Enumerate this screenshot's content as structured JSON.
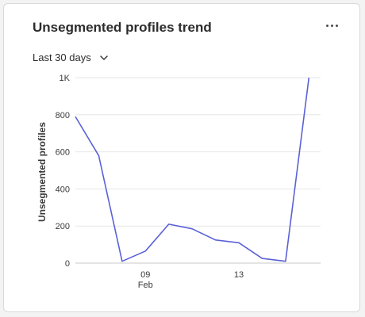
{
  "card": {
    "title": "Unsegmented profiles trend",
    "range_label": "Last 30 days"
  },
  "icons": {
    "more": "more-horizontal-icon",
    "dropdown": "chevron-down-icon"
  },
  "colors": {
    "line": "#5b61d6",
    "grid": "#e6e6e6",
    "axis": "#c8c8c8"
  },
  "chart_data": {
    "type": "line",
    "title": "Unsegmented profiles trend",
    "xlabel": "",
    "ylabel": "Unsegmented profiles",
    "ylim": [
      0,
      1000
    ],
    "yticks": [
      {
        "value": 0,
        "label": "0"
      },
      {
        "value": 200,
        "label": "200"
      },
      {
        "value": 400,
        "label": "400"
      },
      {
        "value": 600,
        "label": "600"
      },
      {
        "value": 800,
        "label": "800"
      },
      {
        "value": 1000,
        "label": "1K"
      }
    ],
    "xlim": [
      6,
      16.5
    ],
    "xticks": [
      {
        "value": 9,
        "label": "09",
        "sublabel": "Feb"
      },
      {
        "value": 13,
        "label": "13",
        "sublabel": ""
      }
    ],
    "grid": true,
    "series": [
      {
        "x": [
          6,
          7,
          8,
          9,
          10,
          11,
          12,
          13,
          14,
          15,
          16
        ],
        "values": [
          790,
          580,
          10,
          65,
          210,
          185,
          125,
          110,
          25,
          10,
          1000
        ]
      }
    ]
  }
}
